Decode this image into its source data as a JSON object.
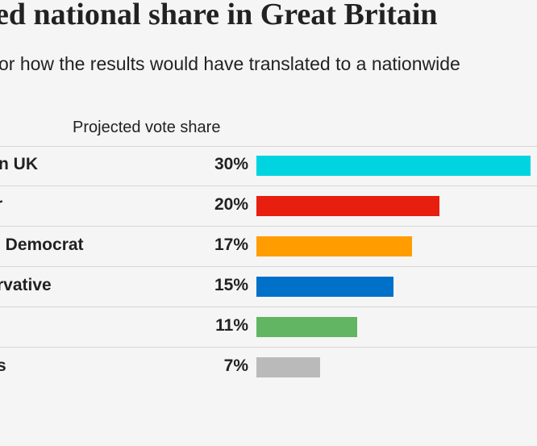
{
  "header": {
    "title": "ed national share in Great Britain",
    "subtitle": "or how the results would have translated to a nationwide"
  },
  "chart_data": {
    "type": "bar",
    "orientation": "horizontal",
    "column_header": "Projected vote share",
    "categories": [
      "n UK",
      "r",
      "l Democrat",
      "rvative",
      "",
      "s"
    ],
    "values": [
      30,
      20,
      17,
      15,
      11,
      7
    ],
    "value_labels": [
      "30%",
      "20%",
      "17%",
      "15%",
      "11%",
      "7%"
    ],
    "colors": [
      "#00d4e0",
      "#e81e0e",
      "#ff9d00",
      "#0071c9",
      "#62b562",
      "#bababa"
    ],
    "xlim": [
      0,
      30
    ],
    "grid": false
  }
}
